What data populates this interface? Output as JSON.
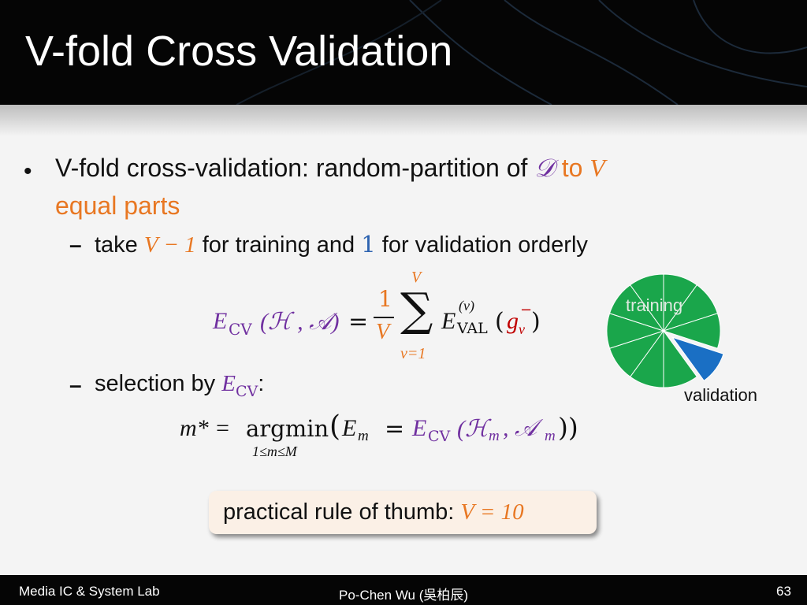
{
  "slide": {
    "title": "V-fold Cross Validation",
    "bullet1": {
      "text_before": "V-fold cross-validation: random-partition of",
      "symbol_D": "𝒟",
      "to": " to ",
      "symbol_V": "V",
      "text_after": "equal parts"
    },
    "sub1": {
      "take": "take",
      "v_minus_1": "V − 1",
      "middle": "for training and",
      "one": "1",
      "end": "for validation orderly"
    },
    "formula1": {
      "lhs_E": "E",
      "lhs_sub": "CV",
      "lhs_args": "(ℋ , 𝒜)",
      "equals": "=",
      "frac_num": "1",
      "frac_den": "V",
      "sum_top": "V",
      "sum_sign": "∑",
      "sum_bottom": "v=1",
      "term_E": "E",
      "term_sup": "(v)",
      "term_sub": "VAL",
      "term_open": "(",
      "term_g": "g",
      "term_g_sub": "v",
      "term_g_sup": "−",
      "term_close": ")"
    },
    "sub2": {
      "text": "selection by",
      "E": "E",
      "E_sub": "CV",
      "colon": ":"
    },
    "formula2": {
      "m_star": "m* =",
      "argmin": "argmin",
      "argmin_sub": "1≤m≤M",
      "open": "(",
      "Em": "E",
      "Em_sub": "m",
      "eq": "=",
      "Ecv": "E",
      "Ecv_sub": "CV",
      "args": "(ℋ",
      "H_sub": "m",
      "comma": ", 𝒜",
      "A_sub": "m",
      "close": "))"
    },
    "callout": {
      "text": "practical rule of thumb:",
      "value": "V = 10"
    },
    "pie": {
      "label_training": "training",
      "label_validation": "validation",
      "folds": 10,
      "validation_folds": 1,
      "training_color": "#1aa64b",
      "validation_color": "#1a6fc4"
    }
  },
  "footer": {
    "left": "Media IC & System Lab",
    "center": "Po-Chen Wu (吳柏辰)",
    "page_number": "63"
  },
  "colors": {
    "accent_orange": "#e87722",
    "purple": "#7030a0",
    "blue": "#2d63b0"
  }
}
